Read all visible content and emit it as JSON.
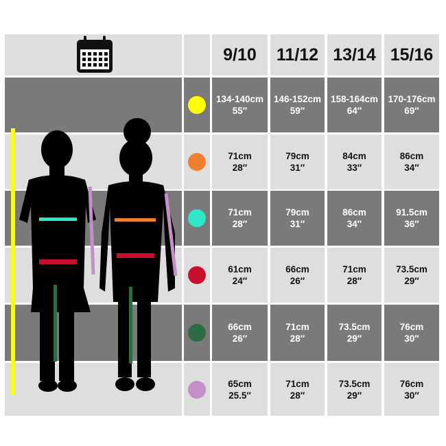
{
  "header": {
    "icon": "calendar-icon",
    "ages": [
      "9/10",
      "11/12",
      "13/14",
      "15/16"
    ]
  },
  "rows": [
    {
      "measure_color": "#ffff00",
      "values": [
        [
          "134-140cm",
          "55″"
        ],
        [
          "146-152cm",
          "59″"
        ],
        [
          "158-164cm",
          "64″"
        ],
        [
          "170-176cm",
          "69″"
        ]
      ]
    },
    {
      "measure_color": "#f07f30",
      "values": [
        [
          "71cm",
          "28″"
        ],
        [
          "79cm",
          "31″"
        ],
        [
          "84cm",
          "33″"
        ],
        [
          "86cm",
          "34″"
        ]
      ]
    },
    {
      "measure_color": "#2ee8c8",
      "values": [
        [
          "71cm",
          "28″"
        ],
        [
          "79cm",
          "31″"
        ],
        [
          "86cm",
          "34″"
        ],
        [
          "91.5cm",
          "36″"
        ]
      ]
    },
    {
      "measure_color": "#c8102e",
      "values": [
        [
          "61cm",
          "24″"
        ],
        [
          "66cm",
          "26″"
        ],
        [
          "71cm",
          "28″"
        ],
        [
          "73.5cm",
          "29″"
        ]
      ]
    },
    {
      "measure_color": "#2e6b44",
      "values": [
        [
          "66cm",
          "26″"
        ],
        [
          "71cm",
          "28″"
        ],
        [
          "73.5cm",
          "29″"
        ],
        [
          "76cm",
          "30″"
        ]
      ]
    },
    {
      "measure_color": "#c28fc8",
      "values": [
        [
          "65cm",
          "25.5″"
        ],
        [
          "71cm",
          "28″"
        ],
        [
          "73.5cm",
          "29″"
        ],
        [
          "76cm",
          "30″"
        ]
      ]
    }
  ]
}
